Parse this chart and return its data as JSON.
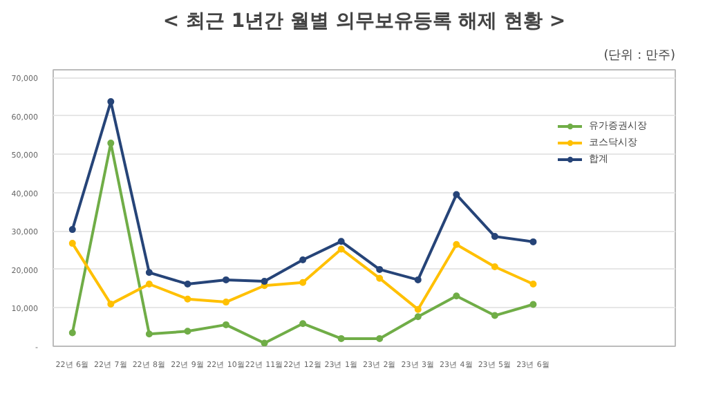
{
  "chart_data": {
    "type": "line",
    "title": "< 최근 1년간 월별 의무보유등록 해제 현황 >",
    "subtitle": "(단위 : 만주)",
    "categories": [
      "22년 6월",
      "22년 7월",
      "22년 8월",
      "22년 9월",
      "22년 10월",
      "22년 11월",
      "22년 12월",
      "23년 1월",
      "23년 2월",
      "23년 3월",
      "23년 4월",
      "23년 5월",
      "23년 6월"
    ],
    "series": [
      {
        "name": "유가증권시장",
        "color": "#70ad47",
        "values": [
          3500,
          52900,
          3200,
          3900,
          5600,
          800,
          5900,
          2000,
          2000,
          7700,
          13100,
          8000,
          10900
        ]
      },
      {
        "name": "코스닥시장",
        "color": "#ffc000",
        "values": [
          26800,
          11000,
          16200,
          12300,
          11500,
          15800,
          16600,
          25300,
          17700,
          9600,
          26500,
          20700,
          16200
        ]
      },
      {
        "name": "합계",
        "color": "#264478",
        "values": [
          30400,
          63700,
          19200,
          16200,
          17300,
          16900,
          22500,
          27300,
          20000,
          17300,
          39500,
          28600,
          27200
        ]
      }
    ],
    "ylim": [
      0,
      72000
    ],
    "yticks": [
      {
        "value": 0,
        "label": "-"
      },
      {
        "value": 10000,
        "label": "10,000"
      },
      {
        "value": 20000,
        "label": "20,000"
      },
      {
        "value": 30000,
        "label": "30,000"
      },
      {
        "value": 40000,
        "label": "40,000"
      },
      {
        "value": 50000,
        "label": "50,000"
      },
      {
        "value": 60000,
        "label": "60,000"
      },
      {
        "value": 70000,
        "label": "70,000"
      }
    ],
    "grid": "y",
    "legend": "right",
    "marker": "circle",
    "line_style": "solid"
  }
}
